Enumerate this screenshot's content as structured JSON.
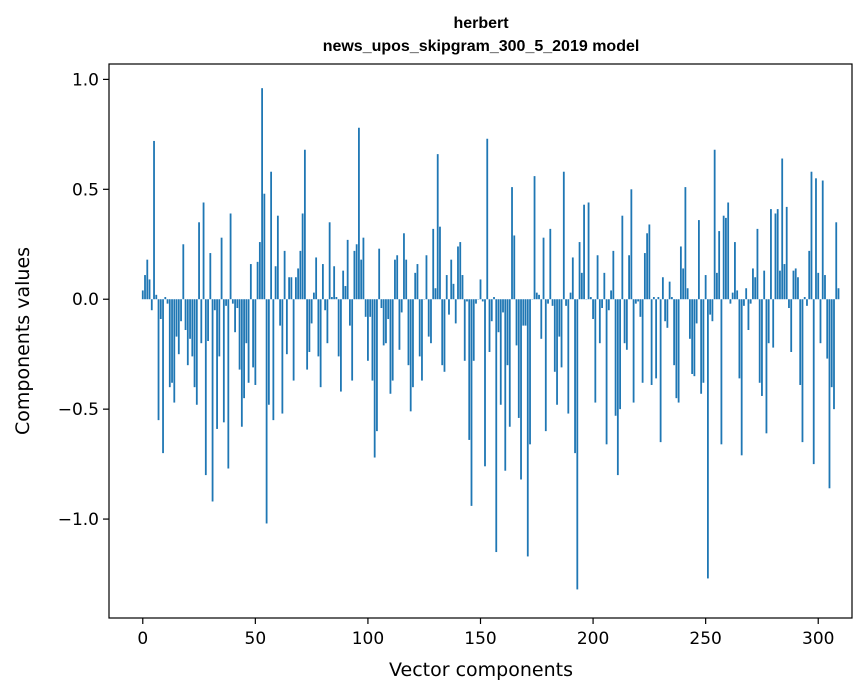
{
  "chart_data": {
    "type": "bar",
    "title": "herbert",
    "subtitle": "news_upos_skipgram_300_5_2019 model",
    "xlabel": "Vector components",
    "ylabel": "Components values",
    "xlim": [
      -15,
      315
    ],
    "ylim": [
      -1.45,
      1.07
    ],
    "xticks": [
      0,
      50,
      100,
      150,
      200,
      250,
      300
    ],
    "xtick_labels": [
      "0",
      "50",
      "100",
      "150",
      "200",
      "250",
      "300"
    ],
    "yticks": [
      -1.0,
      -0.5,
      0.0,
      0.5,
      1.0
    ],
    "ytick_labels": [
      "−1.0",
      "−0.5",
      "0.0",
      "0.5",
      "1.0"
    ],
    "grid": false,
    "color": "#1f77b4",
    "x_start": 0,
    "values": [
      0.04,
      0.11,
      0.18,
      0.09,
      -0.05,
      0.72,
      0.02,
      -0.55,
      -0.09,
      -0.7,
      0.01,
      -0.02,
      -0.4,
      -0.38,
      -0.47,
      -0.17,
      -0.25,
      -0.1,
      0.25,
      -0.14,
      -0.3,
      -0.18,
      -0.26,
      -0.4,
      -0.48,
      0.35,
      -0.2,
      0.44,
      -0.8,
      -0.19,
      0.21,
      -0.92,
      -0.05,
      -0.59,
      -0.26,
      0.28,
      -0.56,
      -0.03,
      -0.77,
      0.39,
      -0.02,
      -0.15,
      -0.04,
      -0.32,
      -0.58,
      -0.45,
      -0.2,
      -0.38,
      0.16,
      -0.31,
      -0.39,
      0.17,
      0.26,
      0.96,
      0.48,
      -1.02,
      -0.48,
      0.58,
      -0.55,
      0.15,
      0.38,
      -0.12,
      -0.52,
      0.22,
      -0.25,
      0.1,
      0.1,
      -0.37,
      0.1,
      0.14,
      0.22,
      0.39,
      0.68,
      -0.32,
      -0.24,
      -0.11,
      0.03,
      0.19,
      -0.26,
      -0.4,
      0.16,
      -0.05,
      -0.2,
      0.35,
      0.01,
      0.15,
      0.01,
      -0.26,
      -0.42,
      0.13,
      0.06,
      0.27,
      -0.12,
      -0.37,
      0.22,
      0.25,
      0.78,
      0.18,
      0.28,
      -0.08,
      -0.28,
      -0.08,
      -0.37,
      -0.72,
      -0.6,
      0.23,
      -0.04,
      -0.21,
      -0.2,
      -0.09,
      -0.43,
      -0.37,
      0.18,
      0.2,
      -0.23,
      -0.06,
      0.3,
      0.18,
      -0.3,
      -0.51,
      -0.4,
      0.12,
      0.16,
      -0.26,
      -0.37,
      0.0,
      0.2,
      -0.17,
      -0.2,
      0.32,
      0.05,
      0.66,
      0.33,
      -0.3,
      -0.33,
      0.11,
      -0.07,
      0.18,
      0.07,
      -0.11,
      0.24,
      0.26,
      0.11,
      -0.28,
      -0.01,
      -0.64,
      -0.94,
      -0.28,
      -0.02,
      0.0,
      0.09,
      -0.01,
      -0.76,
      0.73,
      -0.24,
      -0.1,
      0.01,
      -1.15,
      -0.15,
      -0.48,
      -0.06,
      -0.78,
      -0.3,
      -0.58,
      0.51,
      0.29,
      -0.21,
      -0.54,
      -0.82,
      -0.12,
      -0.12,
      -1.17,
      -0.66,
      0.0,
      0.56,
      0.03,
      0.02,
      -0.18,
      0.28,
      -0.6,
      -0.02,
      0.32,
      -0.03,
      -0.33,
      -0.48,
      -0.17,
      -0.31,
      0.58,
      -0.03,
      -0.52,
      0.03,
      0.19,
      -0.7,
      -1.32,
      0.26,
      0.12,
      0.43,
      0.0,
      0.44,
      0.01,
      -0.09,
      -0.47,
      0.2,
      -0.2,
      -0.04,
      0.12,
      -0.66,
      -0.05,
      0.04,
      0.22,
      -0.53,
      -0.8,
      -0.5,
      0.38,
      -0.2,
      -0.23,
      0.2,
      0.5,
      -0.47,
      -0.02,
      -0.01,
      -0.08,
      -0.38,
      0.21,
      0.3,
      0.34,
      -0.39,
      0.01,
      -0.36,
      0.01,
      -0.65,
      0.1,
      -0.1,
      -0.13,
      0.08,
      0.01,
      -0.3,
      -0.45,
      -0.47,
      0.24,
      0.14,
      0.51,
      0.05,
      -0.18,
      -0.34,
      -0.35,
      -0.11,
      0.36,
      -0.43,
      -0.38,
      0.11,
      -1.27,
      -0.07,
      -0.1,
      0.68,
      0.12,
      0.31,
      -0.66,
      0.38,
      0.37,
      0.44,
      -0.02,
      0.03,
      0.26,
      0.04,
      -0.36,
      -0.71,
      -0.03,
      0.05,
      -0.14,
      -0.02,
      0.14,
      0.1,
      0.32,
      -0.38,
      -0.44,
      0.13,
      -0.61,
      -0.2,
      0.41,
      -0.22,
      0.39,
      0.41,
      0.13,
      0.64,
      0.16,
      0.42,
      -0.04,
      -0.24,
      0.13,
      0.14,
      0.1,
      -0.39,
      -0.65,
      0.01,
      -0.03,
      0.22,
      0.58,
      -0.75,
      0.55,
      0.12,
      -0.2,
      0.54,
      0.11,
      -0.27,
      -0.86,
      -0.4,
      -0.5,
      0.35,
      0.05
    ]
  }
}
